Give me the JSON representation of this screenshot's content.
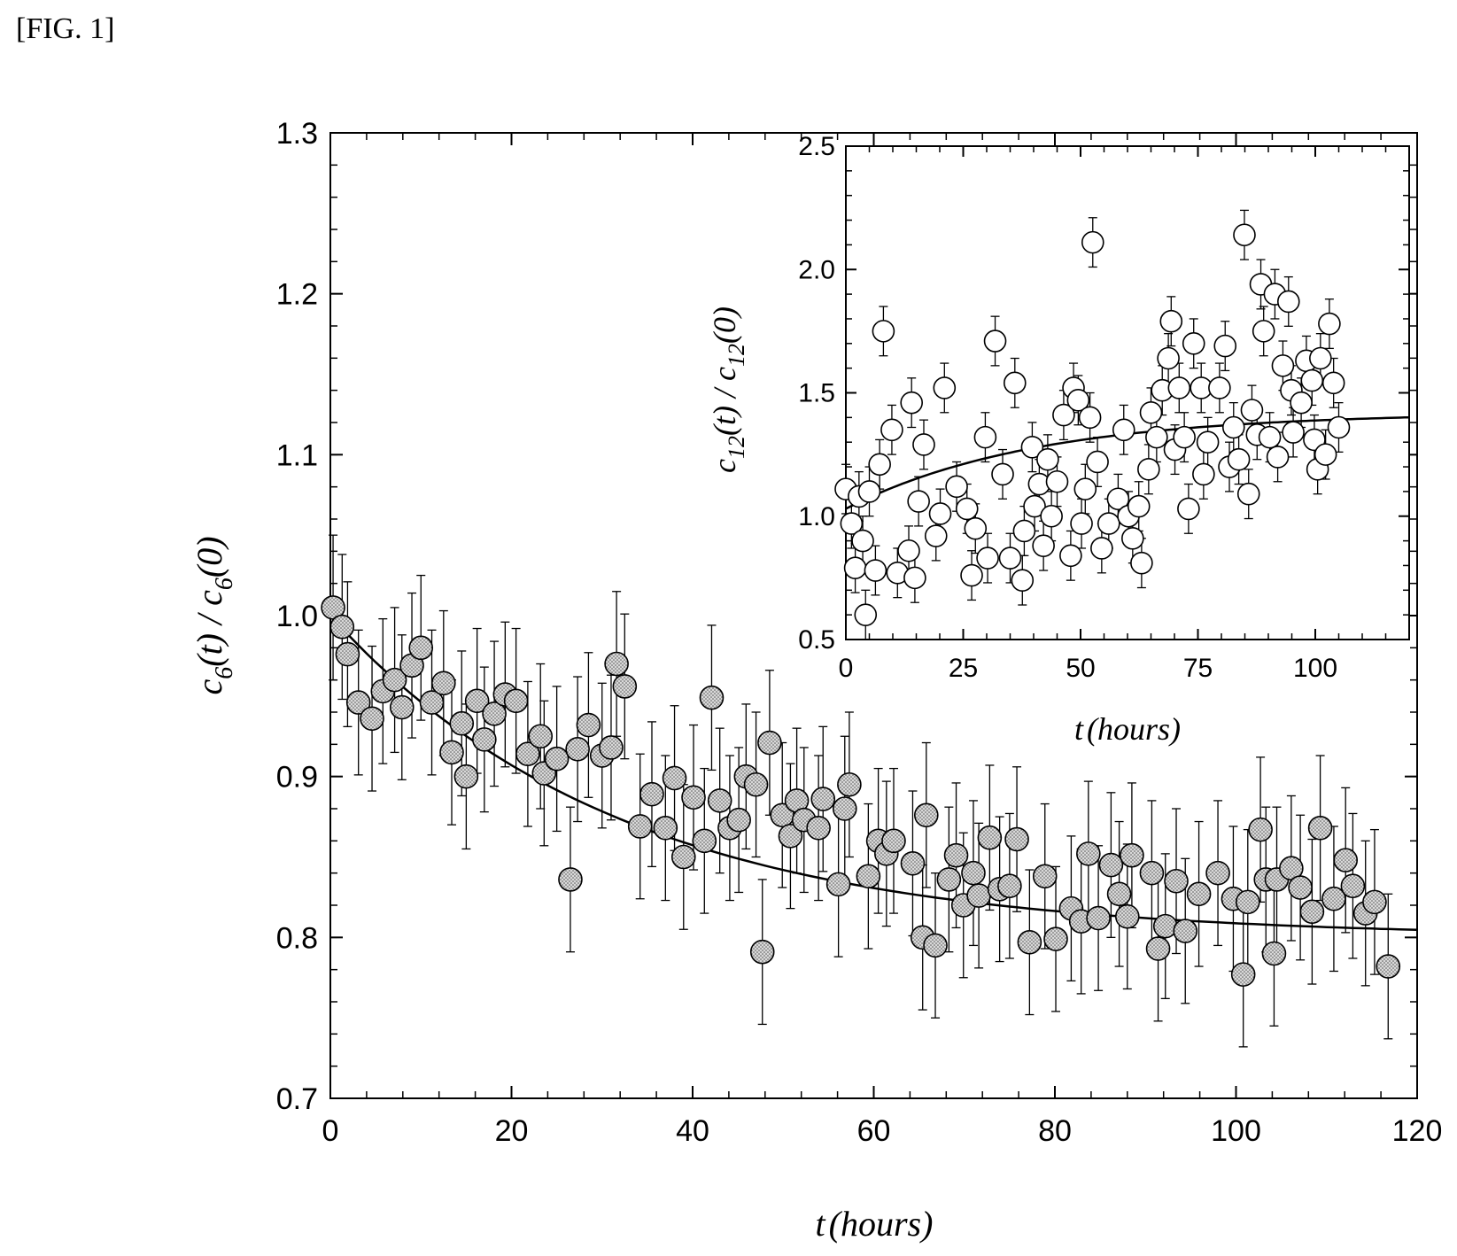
{
  "figure_label": "[FIG. 1]",
  "chart_data": [
    {
      "type": "scatter",
      "title": "",
      "xlabel": "t (hours)",
      "ylabel": "c6(t) / c6(0)",
      "xlim": [
        0,
        120
      ],
      "ylim": [
        0.7,
        1.3
      ],
      "xticks": [
        "0",
        "20",
        "40",
        "60",
        "80",
        "100",
        "120"
      ],
      "yticks": [
        "0.7",
        "0.8",
        "0.9",
        "1.0",
        "1.1",
        "1.2",
        "1.3"
      ],
      "marker": "filled-dotted-circle",
      "error_bar": 0.045,
      "fit_curve": {
        "form": "exponential-decay",
        "start": 1.0,
        "plateau": 0.8,
        "tau_hours": 32
      },
      "points": [
        [
          0.3,
          1.005
        ],
        [
          1.3,
          0.993
        ],
        [
          1.9,
          0.976
        ],
        [
          3.1,
          0.946
        ],
        [
          4.6,
          0.936
        ],
        [
          5.8,
          0.953
        ],
        [
          7.1,
          0.96
        ],
        [
          7.9,
          0.943
        ],
        [
          9.0,
          0.969
        ],
        [
          10.0,
          0.98
        ],
        [
          11.2,
          0.946
        ],
        [
          12.5,
          0.958
        ],
        [
          13.4,
          0.915
        ],
        [
          14.5,
          0.933
        ],
        [
          15.0,
          0.9
        ],
        [
          16.2,
          0.947
        ],
        [
          17.0,
          0.923
        ],
        [
          18.1,
          0.939
        ],
        [
          19.3,
          0.951
        ],
        [
          20.5,
          0.947
        ],
        [
          21.8,
          0.914
        ],
        [
          23.2,
          0.925
        ],
        [
          23.6,
          0.902
        ],
        [
          25.0,
          0.911
        ],
        [
          26.5,
          0.836
        ],
        [
          27.3,
          0.917
        ],
        [
          28.5,
          0.932
        ],
        [
          30.0,
          0.913
        ],
        [
          31.0,
          0.918
        ],
        [
          31.6,
          0.97
        ],
        [
          32.5,
          0.956
        ],
        [
          34.2,
          0.869
        ],
        [
          35.5,
          0.889
        ],
        [
          37.0,
          0.868
        ],
        [
          38.0,
          0.899
        ],
        [
          39.0,
          0.85
        ],
        [
          40.1,
          0.887
        ],
        [
          41.3,
          0.86
        ],
        [
          42.1,
          0.949
        ],
        [
          43.0,
          0.885
        ],
        [
          44.1,
          0.868
        ],
        [
          45.1,
          0.873
        ],
        [
          45.9,
          0.9
        ],
        [
          47.0,
          0.895
        ],
        [
          47.7,
          0.791
        ],
        [
          48.5,
          0.921
        ],
        [
          49.9,
          0.876
        ],
        [
          50.8,
          0.863
        ],
        [
          51.5,
          0.885
        ],
        [
          52.3,
          0.873
        ],
        [
          53.9,
          0.868
        ],
        [
          54.4,
          0.886
        ],
        [
          56.1,
          0.833
        ],
        [
          56.8,
          0.88
        ],
        [
          57.3,
          0.895
        ],
        [
          59.4,
          0.838
        ],
        [
          60.5,
          0.86
        ],
        [
          61.4,
          0.852
        ],
        [
          62.2,
          0.86
        ],
        [
          64.3,
          0.846
        ],
        [
          65.4,
          0.8
        ],
        [
          65.8,
          0.876
        ],
        [
          66.8,
          0.795
        ],
        [
          68.3,
          0.836
        ],
        [
          69.1,
          0.851
        ],
        [
          69.9,
          0.82
        ],
        [
          71.0,
          0.84
        ],
        [
          71.6,
          0.826
        ],
        [
          72.8,
          0.862
        ],
        [
          73.9,
          0.83
        ],
        [
          75.0,
          0.832
        ],
        [
          75.8,
          0.861
        ],
        [
          77.2,
          0.797
        ],
        [
          78.9,
          0.838
        ],
        [
          80.1,
          0.799
        ],
        [
          81.8,
          0.818
        ],
        [
          82.9,
          0.81
        ],
        [
          83.7,
          0.852
        ],
        [
          84.8,
          0.812
        ],
        [
          86.2,
          0.845
        ],
        [
          87.1,
          0.827
        ],
        [
          88.0,
          0.813
        ],
        [
          88.5,
          0.851
        ],
        [
          90.7,
          0.84
        ],
        [
          91.4,
          0.793
        ],
        [
          92.2,
          0.807
        ],
        [
          93.4,
          0.835
        ],
        [
          94.4,
          0.804
        ],
        [
          95.9,
          0.827
        ],
        [
          98.0,
          0.84
        ],
        [
          99.7,
          0.824
        ],
        [
          100.8,
          0.777
        ],
        [
          101.3,
          0.822
        ],
        [
          102.7,
          0.867
        ],
        [
          103.3,
          0.836
        ],
        [
          104.2,
          0.79
        ],
        [
          104.5,
          0.836
        ],
        [
          106.1,
          0.843
        ],
        [
          107.1,
          0.831
        ],
        [
          108.4,
          0.816
        ],
        [
          109.3,
          0.868
        ],
        [
          110.8,
          0.824
        ],
        [
          112.1,
          0.848
        ],
        [
          112.9,
          0.832
        ],
        [
          114.3,
          0.815
        ],
        [
          115.3,
          0.822
        ],
        [
          116.8,
          0.782
        ]
      ]
    },
    {
      "type": "scatter",
      "title": "",
      "xlabel": "t (hours)",
      "ylabel": "c12(t) / c12(0)",
      "xlim": [
        0,
        120
      ],
      "ylim": [
        0.5,
        2.5
      ],
      "xticks": [
        "0",
        "25",
        "50",
        "75",
        "100"
      ],
      "yticks": [
        "0.5",
        "1.0",
        "1.5",
        "2.0",
        "2.5"
      ],
      "marker": "open-circle",
      "error_bar": 0.1,
      "fit_curve": {
        "form": "saturating-rise",
        "start": 1.03,
        "plateau": 1.42,
        "tau_hours": 40
      },
      "points": [
        [
          0,
          1.11
        ],
        [
          1.2,
          0.97
        ],
        [
          2.0,
          0.79
        ],
        [
          2.8,
          1.08
        ],
        [
          3.6,
          0.9
        ],
        [
          4.2,
          0.6
        ],
        [
          5.0,
          1.1
        ],
        [
          6.3,
          0.78
        ],
        [
          7.2,
          1.21
        ],
        [
          8.0,
          1.75
        ],
        [
          9.8,
          1.35
        ],
        [
          11.0,
          0.77
        ],
        [
          13.4,
          0.86
        ],
        [
          14.0,
          1.46
        ],
        [
          14.7,
          0.75
        ],
        [
          15.5,
          1.06
        ],
        [
          16.6,
          1.29
        ],
        [
          19.2,
          0.92
        ],
        [
          20.1,
          1.01
        ],
        [
          21.0,
          1.52
        ],
        [
          23.6,
          1.12
        ],
        [
          25.8,
          1.03
        ],
        [
          26.8,
          0.76
        ],
        [
          27.6,
          0.95
        ],
        [
          29.7,
          1.32
        ],
        [
          30.2,
          0.83
        ],
        [
          31.8,
          1.71
        ],
        [
          33.4,
          1.17
        ],
        [
          35.0,
          0.83
        ],
        [
          36.0,
          1.54
        ],
        [
          37.6,
          0.74
        ],
        [
          38.0,
          0.94
        ],
        [
          39.7,
          1.28
        ],
        [
          40.2,
          1.04
        ],
        [
          41.2,
          1.13
        ],
        [
          42.1,
          0.88
        ],
        [
          43.0,
          1.23
        ],
        [
          43.8,
          1.0
        ],
        [
          45.0,
          1.14
        ],
        [
          46.4,
          1.41
        ],
        [
          47.9,
          0.84
        ],
        [
          48.5,
          1.52
        ],
        [
          49.5,
          1.47
        ],
        [
          50.2,
          0.97
        ],
        [
          51.0,
          1.11
        ],
        [
          52.0,
          1.4
        ],
        [
          52.6,
          2.11
        ],
        [
          53.6,
          1.22
        ],
        [
          54.5,
          0.87
        ],
        [
          56.0,
          0.97
        ],
        [
          58.0,
          1.07
        ],
        [
          59.2,
          1.35
        ],
        [
          60.2,
          1.0
        ],
        [
          61.1,
          0.91
        ],
        [
          62.4,
          1.04
        ],
        [
          63.0,
          0.81
        ],
        [
          64.5,
          1.19
        ],
        [
          65.0,
          1.42
        ],
        [
          66.2,
          1.32
        ],
        [
          67.4,
          1.51
        ],
        [
          68.7,
          1.64
        ],
        [
          69.3,
          1.79
        ],
        [
          70.1,
          1.27
        ],
        [
          71.0,
          1.52
        ],
        [
          72.1,
          1.32
        ],
        [
          73.0,
          1.03
        ],
        [
          74.1,
          1.7
        ],
        [
          75.7,
          1.52
        ],
        [
          76.2,
          1.17
        ],
        [
          77.1,
          1.3
        ],
        [
          79.6,
          1.52
        ],
        [
          80.8,
          1.69
        ],
        [
          81.7,
          1.2
        ],
        [
          82.6,
          1.36
        ],
        [
          83.7,
          1.23
        ],
        [
          84.9,
          2.14
        ],
        [
          85.8,
          1.09
        ],
        [
          86.5,
          1.43
        ],
        [
          87.6,
          1.33
        ],
        [
          88.4,
          1.94
        ],
        [
          89.0,
          1.75
        ],
        [
          90.3,
          1.32
        ],
        [
          91.4,
          1.9
        ],
        [
          92.0,
          1.24
        ],
        [
          93.1,
          1.61
        ],
        [
          94.3,
          1.87
        ],
        [
          94.9,
          1.51
        ],
        [
          95.3,
          1.34
        ],
        [
          97.0,
          1.46
        ],
        [
          98.1,
          1.63
        ],
        [
          99.3,
          1.55
        ],
        [
          99.8,
          1.31
        ],
        [
          100.5,
          1.19
        ],
        [
          101.1,
          1.64
        ],
        [
          102.2,
          1.25
        ],
        [
          103.0,
          1.78
        ],
        [
          103.9,
          1.54
        ],
        [
          105.0,
          1.36
        ]
      ]
    }
  ]
}
